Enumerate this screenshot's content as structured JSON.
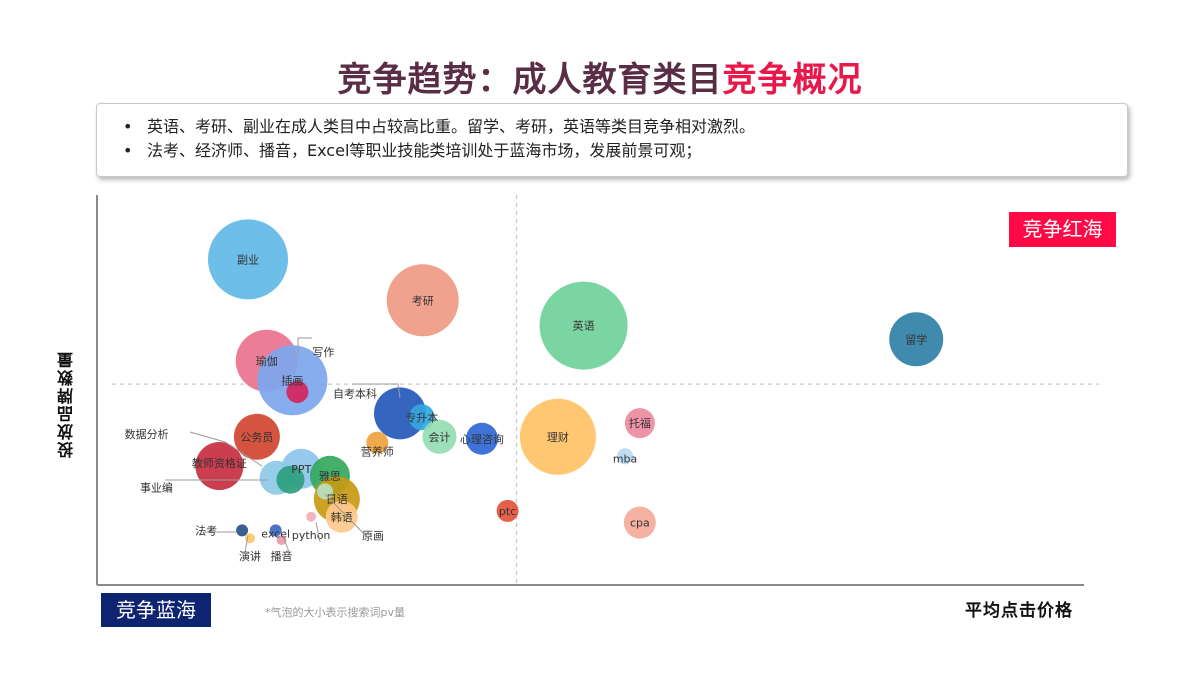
{
  "header": {
    "title_part1": "竞争趋势：成人教育类目",
    "title_part2": "竞争概况",
    "title_part2_color": "#e8184a"
  },
  "summary": {
    "bullets": [
      "英语、考研、副业在成人类目中占较高比重。留学、考研，英语等类目竞争相对激烈。",
      "法考、经济师、播音，Excel等职业技能类培训处于蓝海市场，发展前景可观；"
    ]
  },
  "quadrants": {
    "red_ocean_label": "竞争红海",
    "red_ocean_color": "#ff0a46",
    "blue_ocean_label": "竞争蓝海",
    "blue_ocean_color": "#0e2470"
  },
  "note": "*气泡的大小表示搜索词pv量",
  "chart_data": {
    "type": "scatter",
    "xlabel": "平均点击价格",
    "ylabel": "投放品牌数量",
    "xlim": [
      0,
      100
    ],
    "ylim": [
      0,
      100
    ],
    "divider": {
      "x": 42.5,
      "y": 51.5
    },
    "points": [
      {
        "label": "副业",
        "x": 15.3,
        "y": 83.5,
        "size": 40,
        "color": "#62b8e8"
      },
      {
        "label": "考研",
        "x": 33.0,
        "y": 73.0,
        "size": 36,
        "color": "#f09a84"
      },
      {
        "label": "英语",
        "x": 49.3,
        "y": 66.5,
        "size": 44,
        "color": "#6fd19a"
      },
      {
        "label": "留学",
        "x": 83.0,
        "y": 63.0,
        "size": 27,
        "color": "#2f80a6"
      },
      {
        "label": "瑜伽",
        "x": 17.2,
        "y": 57.5,
        "size": 31,
        "color": "#e9728d"
      },
      {
        "label": "插画",
        "x": 19.8,
        "y": 52.5,
        "size": 35,
        "color": "#7ea6ee"
      },
      {
        "label": "写作",
        "x": 20.3,
        "y": 49.5,
        "size": 11,
        "color": "#d2245a"
      },
      {
        "label": "自考本科",
        "x": 30.7,
        "y": 44.0,
        "size": 26,
        "color": "#2458b8"
      },
      {
        "label": "专升本",
        "x": 32.9,
        "y": 43.0,
        "size": 13,
        "color": "#35a7e0"
      },
      {
        "label": "公务员",
        "x": 16.2,
        "y": 38.0,
        "size": 23,
        "color": "#d1452f"
      },
      {
        "label": "会计",
        "x": 34.7,
        "y": 38.0,
        "size": 17,
        "color": "#94dcb2"
      },
      {
        "label": "心理咨询",
        "x": 39.0,
        "y": 37.5,
        "size": 16,
        "color": "#2f67d6"
      },
      {
        "label": "理财",
        "x": 46.7,
        "y": 38.0,
        "size": 38,
        "color": "#ffc266"
      },
      {
        "label": "托福",
        "x": 55.0,
        "y": 41.5,
        "size": 15,
        "color": "#ee8a9e"
      },
      {
        "label": "营养师",
        "x": 28.4,
        "y": 36.5,
        "size": 11,
        "color": "#f0a23e"
      },
      {
        "label": "mba",
        "x": 53.5,
        "y": 33.0,
        "size": 8,
        "color": "#b8daf0"
      },
      {
        "label": "教师资格证",
        "x": 12.4,
        "y": 30.5,
        "size": 24,
        "color": "#c72c40"
      },
      {
        "label": "PPT",
        "x": 20.7,
        "y": 29.8,
        "size": 20,
        "color": "#8dc4ec"
      },
      {
        "label": "数据分析",
        "x": 18.2,
        "y": 27.5,
        "size": 17,
        "color": "#8dcae8"
      },
      {
        "label": "雅思",
        "x": 23.6,
        "y": 28.0,
        "size": 20,
        "color": "#34a85e"
      },
      {
        "label": "事业编",
        "x": 19.6,
        "y": 27.0,
        "size": 14,
        "color": "#2e9e7f"
      },
      {
        "label": "日语",
        "x": 24.3,
        "y": 22.0,
        "size": 23,
        "color": "#c79a14"
      },
      {
        "label": "韩语",
        "x": 24.8,
        "y": 17.5,
        "size": 16,
        "color": "#ffc98c"
      },
      {
        "label": "原画",
        "x": 23.1,
        "y": 24.0,
        "size": 8,
        "color": "#b8e0c0"
      },
      {
        "label": "ptc",
        "x": 41.6,
        "y": 19.0,
        "size": 11,
        "color": "#e2533a"
      },
      {
        "label": "cpa",
        "x": 55.0,
        "y": 16.0,
        "size": 16,
        "color": "#f4aa9a"
      },
      {
        "label": "法考",
        "x": 14.7,
        "y": 14.0,
        "size": 6,
        "color": "#2d4f8a"
      },
      {
        "label": "演讲",
        "x": 15.5,
        "y": 12.0,
        "size": 5,
        "color": "#ffc76a"
      },
      {
        "label": "excel",
        "x": 18.1,
        "y": 14.0,
        "size": 6,
        "color": "#3f66c2"
      },
      {
        "label": "播音",
        "x": 18.7,
        "y": 11.5,
        "size": 5,
        "color": "#ec9aa8"
      },
      {
        "label": "python",
        "x": 21.7,
        "y": 17.5,
        "size": 5,
        "color": "#f2b0bc"
      }
    ]
  }
}
